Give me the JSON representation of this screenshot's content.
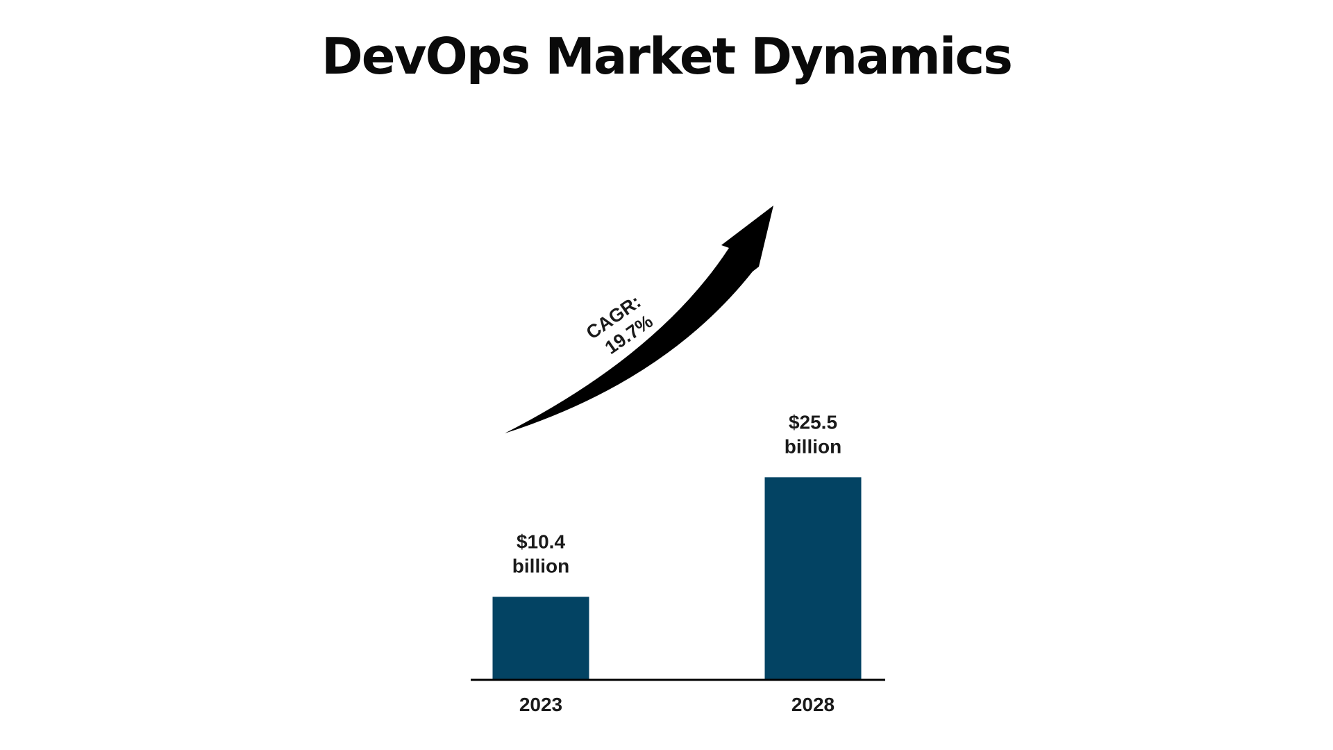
{
  "title": "DevOps Market Dynamics",
  "chart_data": {
    "type": "bar",
    "categories": [
      "2023",
      "2028"
    ],
    "values": [
      10.4,
      25.5
    ],
    "value_labels": [
      [
        "$10.4",
        "billion"
      ],
      [
        "$25.5",
        "billion"
      ]
    ],
    "annotation": [
      "CAGR:",
      "19.7%"
    ],
    "title": "DevOps Market Dynamics",
    "xlabel": "",
    "ylabel": "",
    "grid": false,
    "colors": {
      "bar": "#034363",
      "arrow": "#000000",
      "axis": "#000000"
    }
  }
}
